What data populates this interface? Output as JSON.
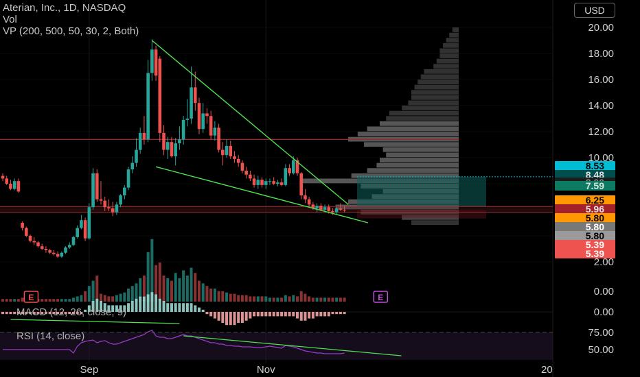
{
  "legend": {
    "symbol_line": "Aterian, Inc., 1D, NASDAQ",
    "vol_line": "Vol",
    "vp_line": "VP (200, 500, 50, 30, 2, Both)",
    "macd_label": "MACD (12, 26, close, 9)",
    "rsi_label": "RSI (14, close)"
  },
  "currency": "USD",
  "colors": {
    "background": "#000000",
    "up": "#26a69a",
    "down": "#ef5350",
    "trendline": "#4ee24e",
    "resistance": "#9b2a2a",
    "rsi": "#9b3cc9",
    "volume_profile": "#6f6f6f",
    "value_area": "#8a8a8a"
  },
  "price_tags": [
    {
      "text": "8.53",
      "bg": "#00bcd4",
      "fg": "#000000",
      "value": 8.53
    },
    {
      "text": "8.48",
      "bg": "#004f4f",
      "fg": "#e0e0e0",
      "value": 8.48
    },
    {
      "text": "8.00",
      "bg": "#1c1c1c",
      "fg": "#8a8a8a",
      "value": 8.0
    },
    {
      "text": "7.59",
      "bg": "#0d7a62",
      "fg": "#e0e0e0",
      "value": 7.59
    },
    {
      "text": "6.25",
      "bg": "#ff9800",
      "fg": "#000000",
      "value": 6.25
    },
    {
      "text": "5.96",
      "bg": "#a4202a",
      "fg": "#e0e0e0",
      "value": 5.96
    },
    {
      "text": "5.80",
      "bg": "#ff9800",
      "fg": "#000000",
      "value": 5.8
    },
    {
      "text": "5.80",
      "bg": "#787878",
      "fg": "#ffffff",
      "value": 5.8
    },
    {
      "text": "5.80",
      "bg": "#9a9a9a",
      "fg": "#000000",
      "value": 5.8
    },
    {
      "text": "5.39",
      "bg": "#ef5350",
      "fg": "#ffffff",
      "value": 5.39
    },
    {
      "text": "5.39",
      "bg": "#ef5350",
      "fg": "#ffffff",
      "value": 5.39
    }
  ],
  "earnings_markers": [
    {
      "label": "E",
      "bar_index": 2,
      "color": "#ef5350"
    },
    {
      "label": "E",
      "bar_index": 74,
      "color": "#c24fe0"
    }
  ],
  "chart_data": [
    {
      "type": "candlestick",
      "title": "Aterian, Inc., 1D, NASDAQ",
      "currency": "USD",
      "y_ticks": [
        2.0,
        4.0,
        6.0,
        8.0,
        10.0,
        12.0,
        14.0,
        16.0,
        18.0,
        20.0
      ],
      "y_tick_labels": [
        "2.00",
        "4.00",
        "6.00",
        "8.00",
        "10.00",
        "12.00",
        "14.00",
        "16.00",
        "18.00",
        "20.00"
      ],
      "ylim": [
        0.0,
        21.0
      ],
      "x_ticks": [
        {
          "label": "Sep",
          "bar_index": 22
        },
        {
          "label": "Nov",
          "bar_index": 67
        },
        {
          "label": "20",
          "bar_index": 113
        }
      ],
      "n_bars": 118,
      "candles": [
        {
          "o": 8.6,
          "h": 8.8,
          "l": 8.2,
          "c": 8.4
        },
        {
          "o": 8.4,
          "h": 8.6,
          "l": 7.9,
          "c": 8.0
        },
        {
          "o": 8.0,
          "h": 8.3,
          "l": 7.5,
          "c": 7.6
        },
        {
          "o": 7.6,
          "h": 8.4,
          "l": 7.5,
          "c": 8.2
        },
        {
          "o": 8.2,
          "h": 8.4,
          "l": 7.3,
          "c": 7.4
        },
        {
          "o": 5.0,
          "h": 5.1,
          "l": 4.4,
          "c": 4.6
        },
        {
          "o": 4.6,
          "h": 4.7,
          "l": 3.9,
          "c": 4.0
        },
        {
          "o": 4.0,
          "h": 4.1,
          "l": 3.5,
          "c": 3.6
        },
        {
          "o": 3.6,
          "h": 3.9,
          "l": 3.3,
          "c": 3.5
        },
        {
          "o": 3.5,
          "h": 3.6,
          "l": 3.1,
          "c": 3.2
        },
        {
          "o": 3.2,
          "h": 3.4,
          "l": 2.9,
          "c": 3.0
        },
        {
          "o": 3.0,
          "h": 3.2,
          "l": 2.7,
          "c": 2.9
        },
        {
          "o": 2.9,
          "h": 3.0,
          "l": 2.6,
          "c": 2.7
        },
        {
          "o": 2.7,
          "h": 2.9,
          "l": 2.5,
          "c": 2.6
        },
        {
          "o": 2.6,
          "h": 2.8,
          "l": 2.3,
          "c": 2.4
        },
        {
          "o": 2.4,
          "h": 2.8,
          "l": 2.3,
          "c": 2.7
        },
        {
          "o": 2.7,
          "h": 3.2,
          "l": 2.6,
          "c": 3.1
        },
        {
          "o": 3.1,
          "h": 3.5,
          "l": 3.0,
          "c": 3.3
        },
        {
          "o": 3.3,
          "h": 4.0,
          "l": 3.2,
          "c": 3.9
        },
        {
          "o": 3.9,
          "h": 4.8,
          "l": 3.8,
          "c": 4.6
        },
        {
          "o": 4.6,
          "h": 5.6,
          "l": 4.5,
          "c": 5.2
        },
        {
          "o": 5.2,
          "h": 5.4,
          "l": 3.6,
          "c": 3.8
        },
        {
          "o": 3.8,
          "h": 6.5,
          "l": 3.7,
          "c": 6.2
        },
        {
          "o": 6.2,
          "h": 9.2,
          "l": 6.0,
          "c": 8.8
        },
        {
          "o": 8.8,
          "h": 9.1,
          "l": 6.6,
          "c": 6.8
        },
        {
          "o": 6.8,
          "h": 8.2,
          "l": 6.4,
          "c": 6.7
        },
        {
          "o": 6.7,
          "h": 7.0,
          "l": 5.9,
          "c": 6.2
        },
        {
          "o": 6.2,
          "h": 6.8,
          "l": 5.9,
          "c": 6.1
        },
        {
          "o": 6.1,
          "h": 6.6,
          "l": 5.5,
          "c": 5.8
        },
        {
          "o": 5.8,
          "h": 6.6,
          "l": 5.6,
          "c": 6.4
        },
        {
          "o": 6.4,
          "h": 7.2,
          "l": 6.2,
          "c": 7.1
        },
        {
          "o": 7.1,
          "h": 7.9,
          "l": 6.8,
          "c": 7.7
        },
        {
          "o": 7.7,
          "h": 9.3,
          "l": 7.5,
          "c": 9.1
        },
        {
          "o": 9.1,
          "h": 10.1,
          "l": 8.8,
          "c": 9.6
        },
        {
          "o": 9.6,
          "h": 11.5,
          "l": 9.3,
          "c": 10.6
        },
        {
          "o": 10.6,
          "h": 12.3,
          "l": 10.3,
          "c": 11.9
        },
        {
          "o": 11.9,
          "h": 13.2,
          "l": 11.0,
          "c": 11.4
        },
        {
          "o": 11.4,
          "h": 17.5,
          "l": 11.2,
          "c": 16.5
        },
        {
          "o": 16.5,
          "h": 19.1,
          "l": 15.9,
          "c": 18.3
        },
        {
          "o": 18.3,
          "h": 18.6,
          "l": 15.9,
          "c": 16.3
        },
        {
          "o": 17.6,
          "h": 17.8,
          "l": 11.2,
          "c": 11.9
        },
        {
          "o": 11.9,
          "h": 12.5,
          "l": 10.2,
          "c": 10.6
        },
        {
          "o": 10.6,
          "h": 11.6,
          "l": 9.9,
          "c": 11.2
        },
        {
          "o": 11.2,
          "h": 11.6,
          "l": 10.0,
          "c": 10.1
        },
        {
          "o": 10.1,
          "h": 11.5,
          "l": 9.4,
          "c": 11.1
        },
        {
          "o": 11.1,
          "h": 12.4,
          "l": 10.6,
          "c": 11.4
        },
        {
          "o": 11.4,
          "h": 13.2,
          "l": 11.0,
          "c": 12.9
        },
        {
          "o": 12.9,
          "h": 14.5,
          "l": 12.4,
          "c": 13.0
        },
        {
          "o": 13.0,
          "h": 17.0,
          "l": 12.6,
          "c": 15.4
        },
        {
          "o": 15.4,
          "h": 16.6,
          "l": 13.6,
          "c": 14.2
        },
        {
          "o": 14.2,
          "h": 14.6,
          "l": 11.8,
          "c": 12.2
        },
        {
          "o": 12.2,
          "h": 14.2,
          "l": 11.9,
          "c": 13.4
        },
        {
          "o": 13.4,
          "h": 13.8,
          "l": 12.6,
          "c": 13.2
        },
        {
          "o": 13.2,
          "h": 13.6,
          "l": 11.4,
          "c": 11.7
        },
        {
          "o": 11.7,
          "h": 12.8,
          "l": 11.3,
          "c": 12.3
        },
        {
          "o": 12.3,
          "h": 12.6,
          "l": 10.4,
          "c": 10.6
        },
        {
          "o": 10.6,
          "h": 11.2,
          "l": 9.4,
          "c": 10.2
        },
        {
          "o": 10.2,
          "h": 11.4,
          "l": 10.0,
          "c": 10.9
        },
        {
          "o": 10.9,
          "h": 11.3,
          "l": 9.9,
          "c": 10.1
        },
        {
          "o": 10.1,
          "h": 10.5,
          "l": 9.6,
          "c": 9.9
        },
        {
          "o": 9.9,
          "h": 10.2,
          "l": 9.3,
          "c": 9.6
        },
        {
          "o": 9.6,
          "h": 9.8,
          "l": 8.8,
          "c": 9.0
        },
        {
          "o": 9.0,
          "h": 9.3,
          "l": 8.4,
          "c": 8.7
        },
        {
          "o": 8.7,
          "h": 9.0,
          "l": 8.2,
          "c": 8.4
        },
        {
          "o": 8.4,
          "h": 8.7,
          "l": 7.7,
          "c": 7.9
        },
        {
          "o": 7.9,
          "h": 8.6,
          "l": 7.6,
          "c": 8.3
        },
        {
          "o": 8.3,
          "h": 8.5,
          "l": 7.7,
          "c": 7.9
        },
        {
          "o": 7.9,
          "h": 8.4,
          "l": 7.6,
          "c": 8.2
        },
        {
          "o": 8.2,
          "h": 8.4,
          "l": 7.9,
          "c": 8.2
        },
        {
          "o": 8.2,
          "h": 8.5,
          "l": 7.9,
          "c": 8.0
        },
        {
          "o": 8.0,
          "h": 8.3,
          "l": 7.8,
          "c": 8.1
        },
        {
          "o": 8.1,
          "h": 8.4,
          "l": 7.8,
          "c": 7.9
        },
        {
          "o": 7.9,
          "h": 9.5,
          "l": 7.8,
          "c": 9.2
        },
        {
          "o": 9.2,
          "h": 9.5,
          "l": 8.6,
          "c": 8.8
        },
        {
          "o": 8.8,
          "h": 10.1,
          "l": 8.7,
          "c": 9.8
        },
        {
          "o": 9.8,
          "h": 10.0,
          "l": 8.6,
          "c": 8.8
        },
        {
          "o": 8.8,
          "h": 8.9,
          "l": 6.8,
          "c": 7.1
        },
        {
          "o": 7.1,
          "h": 7.6,
          "l": 6.5,
          "c": 6.8
        },
        {
          "o": 6.8,
          "h": 7.0,
          "l": 6.2,
          "c": 6.4
        },
        {
          "o": 6.4,
          "h": 6.6,
          "l": 6.0,
          "c": 6.1
        },
        {
          "o": 6.1,
          "h": 6.5,
          "l": 5.8,
          "c": 6.3
        },
        {
          "o": 6.3,
          "h": 6.5,
          "l": 5.9,
          "c": 6.0
        },
        {
          "o": 6.0,
          "h": 6.4,
          "l": 5.8,
          "c": 6.2
        },
        {
          "o": 6.2,
          "h": 6.4,
          "l": 5.7,
          "c": 5.9
        },
        {
          "o": 5.9,
          "h": 6.1,
          "l": 5.6,
          "c": 5.8
        },
        {
          "o": 5.8,
          "h": 6.2,
          "l": 5.6,
          "c": 6.1
        },
        {
          "o": 6.1,
          "h": 6.5,
          "l": 5.9,
          "c": 6.0
        },
        {
          "o": 6.0,
          "h": 6.3,
          "l": 5.8,
          "c": 5.96
        }
      ],
      "volume": [
        2,
        2,
        2,
        2,
        2,
        3,
        2,
        2,
        2,
        2,
        2,
        2,
        2,
        2,
        2,
        2,
        2,
        2,
        3,
        4,
        5,
        8,
        12,
        16,
        20,
        6,
        5,
        4,
        4,
        5,
        6,
        7,
        10,
        12,
        14,
        18,
        20,
        38,
        48,
        28,
        30,
        20,
        18,
        16,
        22,
        18,
        24,
        20,
        26,
        22,
        16,
        14,
        12,
        10,
        10,
        8,
        8,
        7,
        6,
        6,
        5,
        5,
        5,
        4,
        4,
        4,
        4,
        4,
        3,
        3,
        3,
        3,
        5,
        4,
        5,
        4,
        8,
        6,
        4,
        3,
        3,
        3,
        3,
        3,
        3,
        3,
        3,
        3
      ],
      "macd_histogram": [
        -1,
        -1,
        -1,
        -1,
        -1,
        -1,
        -1,
        -1,
        -1,
        -1,
        -1,
        -1,
        -1,
        -1,
        -1,
        -1,
        -1,
        -1,
        -1,
        -1,
        -1,
        1,
        3,
        5,
        6,
        5,
        4,
        3,
        3,
        3,
        3,
        3,
        4,
        5,
        6,
        7,
        7,
        8,
        9,
        8,
        6,
        5,
        4,
        4,
        4,
        4,
        4,
        4,
        4,
        3,
        2,
        1,
        -1,
        -2,
        -3,
        -4,
        -5,
        -6,
        -6,
        -6,
        -5,
        -5,
        -4,
        -3,
        -2,
        -2,
        -2,
        -2,
        -2,
        -2,
        -2,
        -2,
        -2,
        -2,
        -2,
        -3,
        -4,
        -4,
        -3,
        -3,
        -2,
        -2,
        -2,
        -2,
        -1,
        -1,
        -1,
        -1
      ],
      "rsi": [
        50,
        50,
        50,
        50,
        50,
        50,
        50,
        50,
        50,
        50,
        50,
        50,
        50,
        50,
        50,
        50,
        50,
        50,
        45,
        55,
        60,
        62,
        63,
        64,
        60,
        62,
        63,
        60,
        58,
        58,
        60,
        62,
        64,
        66,
        68,
        70,
        72,
        76,
        78,
        70,
        68,
        68,
        66,
        66,
        68,
        70,
        72,
        70,
        70,
        68,
        66,
        64,
        62,
        60,
        60,
        58,
        58,
        56,
        56,
        55,
        55,
        54,
        54,
        54,
        53,
        53,
        53,
        54,
        55,
        54,
        53,
        52,
        56,
        55,
        54,
        52,
        50,
        48,
        47,
        46,
        45,
        45,
        44,
        44,
        44,
        44,
        44,
        45
      ],
      "rsi_ticks": [
        50.0,
        75.0
      ],
      "rsi_tick_labels": [
        "50.00",
        "75.00"
      ],
      "macd_tick_label": "0.00",
      "volume_tick_label": "0.00",
      "resistance_level": 11.4,
      "support_band": [
        5.8,
        6.25
      ],
      "last_price_line": 8.53,
      "upper_trendline": {
        "from": {
          "bar_index": 38,
          "price": 19.0
        },
        "to": {
          "bar_index": 88,
          "price": 6.4
        }
      },
      "lower_trendline": {
        "from": {
          "bar_index": 39,
          "price": 9.3
        },
        "to": {
          "bar_index": 93,
          "price": 5.0
        }
      },
      "macd_divergence_line": {
        "from": {
          "bar_index": 2,
          "value": -0.5
        },
        "to": {
          "bar_index": 45,
          "value": -1.6
        }
      },
      "rsi_divergence_line": {
        "from": {
          "bar_index": 46,
          "value": 72
        },
        "to": {
          "bar_index": 98,
          "value": 44
        }
      },
      "volume_profile": [
        {
          "price": 5.0,
          "vol": 0.3
        },
        {
          "price": 5.4,
          "vol": 0.36
        },
        {
          "price": 5.8,
          "vol": 0.62
        },
        {
          "price": 6.2,
          "vol": 0.78
        },
        {
          "price": 6.6,
          "vol": 0.7
        },
        {
          "price": 7.0,
          "vol": 0.55
        },
        {
          "price": 7.4,
          "vol": 0.48
        },
        {
          "price": 7.8,
          "vol": 0.62
        },
        {
          "price": 8.2,
          "vol": 1.0
        },
        {
          "price": 8.6,
          "vol": 0.68
        },
        {
          "price": 9.0,
          "vol": 0.58
        },
        {
          "price": 9.4,
          "vol": 0.52
        },
        {
          "price": 9.8,
          "vol": 0.5
        },
        {
          "price": 10.2,
          "vol": 0.46
        },
        {
          "price": 10.6,
          "vol": 0.48
        },
        {
          "price": 11.0,
          "vol": 0.6
        },
        {
          "price": 11.4,
          "vol": 0.7
        },
        {
          "price": 11.8,
          "vol": 0.64
        },
        {
          "price": 12.2,
          "vol": 0.58
        },
        {
          "price": 12.6,
          "vol": 0.5
        },
        {
          "price": 13.0,
          "vol": 0.46
        },
        {
          "price": 13.4,
          "vol": 0.44
        },
        {
          "price": 13.8,
          "vol": 0.36
        },
        {
          "price": 14.2,
          "vol": 0.32
        },
        {
          "price": 14.6,
          "vol": 0.3
        },
        {
          "price": 15.0,
          "vol": 0.3
        },
        {
          "price": 15.4,
          "vol": 0.28
        },
        {
          "price": 15.8,
          "vol": 0.26
        },
        {
          "price": 16.2,
          "vol": 0.24
        },
        {
          "price": 16.6,
          "vol": 0.22
        },
        {
          "price": 17.0,
          "vol": 0.16
        },
        {
          "price": 17.4,
          "vol": 0.14
        },
        {
          "price": 17.8,
          "vol": 0.12
        },
        {
          "price": 18.2,
          "vol": 0.12
        },
        {
          "price": 18.6,
          "vol": 0.1
        },
        {
          "price": 19.0,
          "vol": 0.08
        },
        {
          "price": 19.4,
          "vol": 0.06
        },
        {
          "price": 19.8,
          "vol": 0.04
        }
      ]
    }
  ]
}
